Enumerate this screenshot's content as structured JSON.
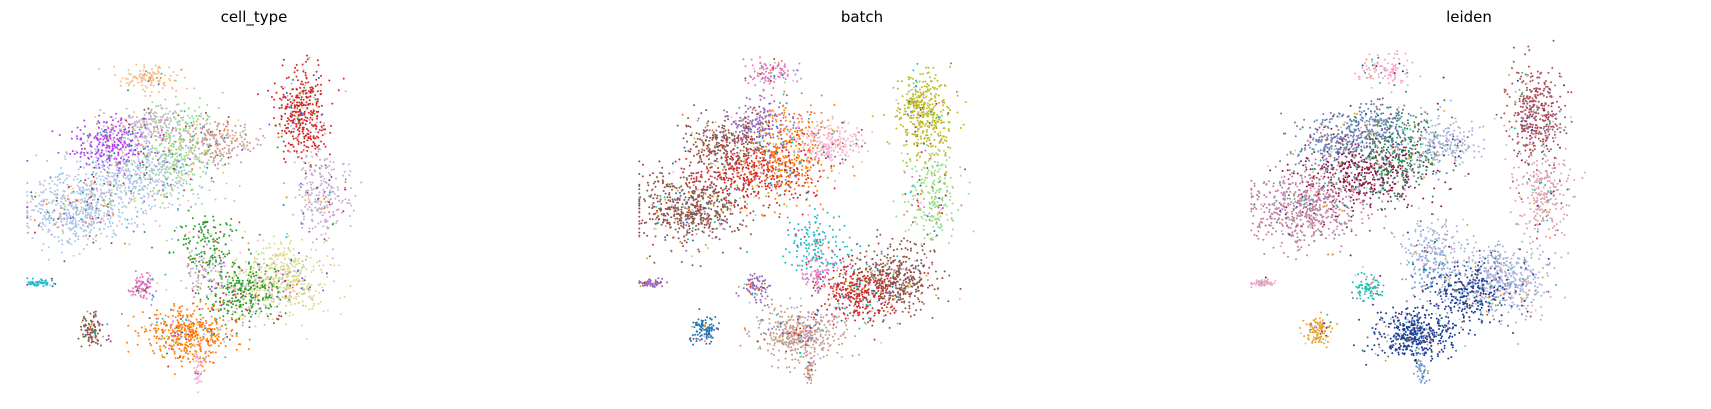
{
  "chart_data": [
    {
      "type": "scatter",
      "title": "cell_type",
      "xlabel": "",
      "ylabel": "",
      "grid": false,
      "legend": "none",
      "palette": [
        "#aec7e8",
        "#c5b0d5",
        "#98df8a",
        "#d62728",
        "#2ca02c",
        "#dbdb8d",
        "#ff7f0e",
        "#8c564b",
        "#e377c2",
        "#17becf",
        "#c49c94",
        "#ffbb78",
        "#b040f0",
        "#1f77b4",
        "#f7b6d2"
      ],
      "clusters": [
        {
          "x": 0.27,
          "y": 0.88,
          "sx": 0.035,
          "sy": 0.018,
          "n": 120,
          "c": 11
        },
        {
          "x": 0.25,
          "y": 0.62,
          "sx": 0.07,
          "sy": 0.045,
          "n": 500,
          "c": 0
        },
        {
          "x": 0.12,
          "y": 0.52,
          "sx": 0.06,
          "sy": 0.05,
          "n": 650,
          "c": 0
        },
        {
          "x": 0.33,
          "y": 0.68,
          "sx": 0.045,
          "sy": 0.07,
          "n": 350,
          "c": 2
        },
        {
          "x": 0.19,
          "y": 0.7,
          "sx": 0.045,
          "sy": 0.035,
          "n": 280,
          "c": 12
        },
        {
          "x": 0.27,
          "y": 0.75,
          "sx": 0.04,
          "sy": 0.03,
          "n": 200,
          "c": 1
        },
        {
          "x": 0.43,
          "y": 0.7,
          "sx": 0.035,
          "sy": 0.03,
          "n": 220,
          "c": 10
        },
        {
          "x": 0.61,
          "y": 0.78,
          "sx": 0.03,
          "sy": 0.06,
          "n": 420,
          "c": 3
        },
        {
          "x": 0.65,
          "y": 0.55,
          "sx": 0.03,
          "sy": 0.06,
          "n": 250,
          "c": 1
        },
        {
          "x": 0.56,
          "y": 0.32,
          "sx": 0.05,
          "sy": 0.05,
          "n": 520,
          "c": 5
        },
        {
          "x": 0.48,
          "y": 0.28,
          "sx": 0.045,
          "sy": 0.04,
          "n": 320,
          "c": 4
        },
        {
          "x": 0.36,
          "y": 0.17,
          "sx": 0.045,
          "sy": 0.035,
          "n": 480,
          "c": 6
        },
        {
          "x": 0.4,
          "y": 0.34,
          "sx": 0.025,
          "sy": 0.03,
          "n": 90,
          "c": 1
        },
        {
          "x": 0.26,
          "y": 0.3,
          "sx": 0.015,
          "sy": 0.018,
          "n": 90,
          "c": 8
        },
        {
          "x": 0.15,
          "y": 0.18,
          "sx": 0.015,
          "sy": 0.02,
          "n": 110,
          "c": 7
        },
        {
          "x": 0.03,
          "y": 0.31,
          "sx": 0.015,
          "sy": 0.005,
          "n": 60,
          "c": 9
        },
        {
          "x": 0.38,
          "y": 0.07,
          "sx": 0.006,
          "sy": 0.02,
          "n": 40,
          "c": 14
        },
        {
          "x": 0.4,
          "y": 0.42,
          "sx": 0.04,
          "sy": 0.04,
          "n": 160,
          "c": 4
        }
      ]
    },
    {
      "type": "scatter",
      "title": "batch",
      "xlabel": "",
      "ylabel": "",
      "grid": false,
      "legend": "none",
      "palette": [
        "#8c564b",
        "#d62728",
        "#ff7f0e",
        "#9467bd",
        "#e377c2",
        "#17becf",
        "#bcbd22",
        "#98df8a",
        "#aec7e8",
        "#c49c94",
        "#1f77b4",
        "#f7b6d2"
      ],
      "clusters": [
        {
          "x": 0.3,
          "y": 0.9,
          "sx": 0.03,
          "sy": 0.02,
          "n": 110,
          "c": 4
        },
        {
          "x": 0.25,
          "y": 0.62,
          "sx": 0.07,
          "sy": 0.045,
          "n": 500,
          "c": 1
        },
        {
          "x": 0.12,
          "y": 0.52,
          "sx": 0.06,
          "sy": 0.05,
          "n": 650,
          "c": 0
        },
        {
          "x": 0.33,
          "y": 0.68,
          "sx": 0.045,
          "sy": 0.07,
          "n": 350,
          "c": 2
        },
        {
          "x": 0.19,
          "y": 0.7,
          "sx": 0.045,
          "sy": 0.035,
          "n": 280,
          "c": 0
        },
        {
          "x": 0.27,
          "y": 0.75,
          "sx": 0.04,
          "sy": 0.03,
          "n": 200,
          "c": 3
        },
        {
          "x": 0.43,
          "y": 0.7,
          "sx": 0.035,
          "sy": 0.03,
          "n": 220,
          "c": 11
        },
        {
          "x": 0.63,
          "y": 0.78,
          "sx": 0.03,
          "sy": 0.06,
          "n": 420,
          "c": 6
        },
        {
          "x": 0.65,
          "y": 0.55,
          "sx": 0.03,
          "sy": 0.06,
          "n": 250,
          "c": 7
        },
        {
          "x": 0.56,
          "y": 0.32,
          "sx": 0.05,
          "sy": 0.05,
          "n": 520,
          "c": 0
        },
        {
          "x": 0.48,
          "y": 0.28,
          "sx": 0.045,
          "sy": 0.04,
          "n": 320,
          "c": 1
        },
        {
          "x": 0.36,
          "y": 0.17,
          "sx": 0.045,
          "sy": 0.035,
          "n": 480,
          "c": 9
        },
        {
          "x": 0.4,
          "y": 0.34,
          "sx": 0.025,
          "sy": 0.03,
          "n": 90,
          "c": 4
        },
        {
          "x": 0.26,
          "y": 0.3,
          "sx": 0.015,
          "sy": 0.018,
          "n": 90,
          "c": 3
        },
        {
          "x": 0.15,
          "y": 0.18,
          "sx": 0.015,
          "sy": 0.02,
          "n": 110,
          "c": 10
        },
        {
          "x": 0.03,
          "y": 0.31,
          "sx": 0.015,
          "sy": 0.005,
          "n": 60,
          "c": 3
        },
        {
          "x": 0.38,
          "y": 0.07,
          "sx": 0.006,
          "sy": 0.02,
          "n": 40,
          "c": 9
        },
        {
          "x": 0.4,
          "y": 0.42,
          "sx": 0.04,
          "sy": 0.04,
          "n": 160,
          "c": 5
        }
      ]
    },
    {
      "type": "scatter",
      "title": "leiden",
      "xlabel": "",
      "ylabel": "",
      "grid": false,
      "legend": "none",
      "palette": [
        "#1f3f99",
        "#ad4f5a",
        "#a7b5dc",
        "#8b1a3e",
        "#6b7fb8",
        "#e0a0ae",
        "#2e8b57",
        "#f0a020",
        "#20c0b0",
        "#b8d8b0",
        "#f4a6c6",
        "#6f9fd8",
        "#c080a0"
      ],
      "clusters": [
        {
          "x": 0.3,
          "y": 0.9,
          "sx": 0.03,
          "sy": 0.02,
          "n": 110,
          "c": 10
        },
        {
          "x": 0.25,
          "y": 0.62,
          "sx": 0.07,
          "sy": 0.045,
          "n": 500,
          "c": 3
        },
        {
          "x": 0.12,
          "y": 0.52,
          "sx": 0.06,
          "sy": 0.05,
          "n": 650,
          "c": 12
        },
        {
          "x": 0.33,
          "y": 0.68,
          "sx": 0.045,
          "sy": 0.07,
          "n": 350,
          "c": 6
        },
        {
          "x": 0.19,
          "y": 0.7,
          "sx": 0.045,
          "sy": 0.035,
          "n": 280,
          "c": 4
        },
        {
          "x": 0.27,
          "y": 0.75,
          "sx": 0.04,
          "sy": 0.03,
          "n": 200,
          "c": 4
        },
        {
          "x": 0.43,
          "y": 0.7,
          "sx": 0.035,
          "sy": 0.03,
          "n": 220,
          "c": 2
        },
        {
          "x": 0.63,
          "y": 0.78,
          "sx": 0.03,
          "sy": 0.06,
          "n": 420,
          "c": 1
        },
        {
          "x": 0.65,
          "y": 0.55,
          "sx": 0.03,
          "sy": 0.06,
          "n": 250,
          "c": 5
        },
        {
          "x": 0.56,
          "y": 0.32,
          "sx": 0.05,
          "sy": 0.05,
          "n": 520,
          "c": 2
        },
        {
          "x": 0.48,
          "y": 0.28,
          "sx": 0.045,
          "sy": 0.04,
          "n": 320,
          "c": 0
        },
        {
          "x": 0.36,
          "y": 0.17,
          "sx": 0.045,
          "sy": 0.035,
          "n": 480,
          "c": 0
        },
        {
          "x": 0.4,
          "y": 0.34,
          "sx": 0.025,
          "sy": 0.03,
          "n": 90,
          "c": 11
        },
        {
          "x": 0.26,
          "y": 0.3,
          "sx": 0.015,
          "sy": 0.018,
          "n": 90,
          "c": 8
        },
        {
          "x": 0.15,
          "y": 0.18,
          "sx": 0.015,
          "sy": 0.02,
          "n": 110,
          "c": 7
        },
        {
          "x": 0.03,
          "y": 0.31,
          "sx": 0.015,
          "sy": 0.005,
          "n": 60,
          "c": 10
        },
        {
          "x": 0.38,
          "y": 0.07,
          "sx": 0.006,
          "sy": 0.02,
          "n": 40,
          "c": 11
        },
        {
          "x": 0.4,
          "y": 0.42,
          "sx": 0.04,
          "sy": 0.04,
          "n": 160,
          "c": 2
        }
      ]
    }
  ]
}
